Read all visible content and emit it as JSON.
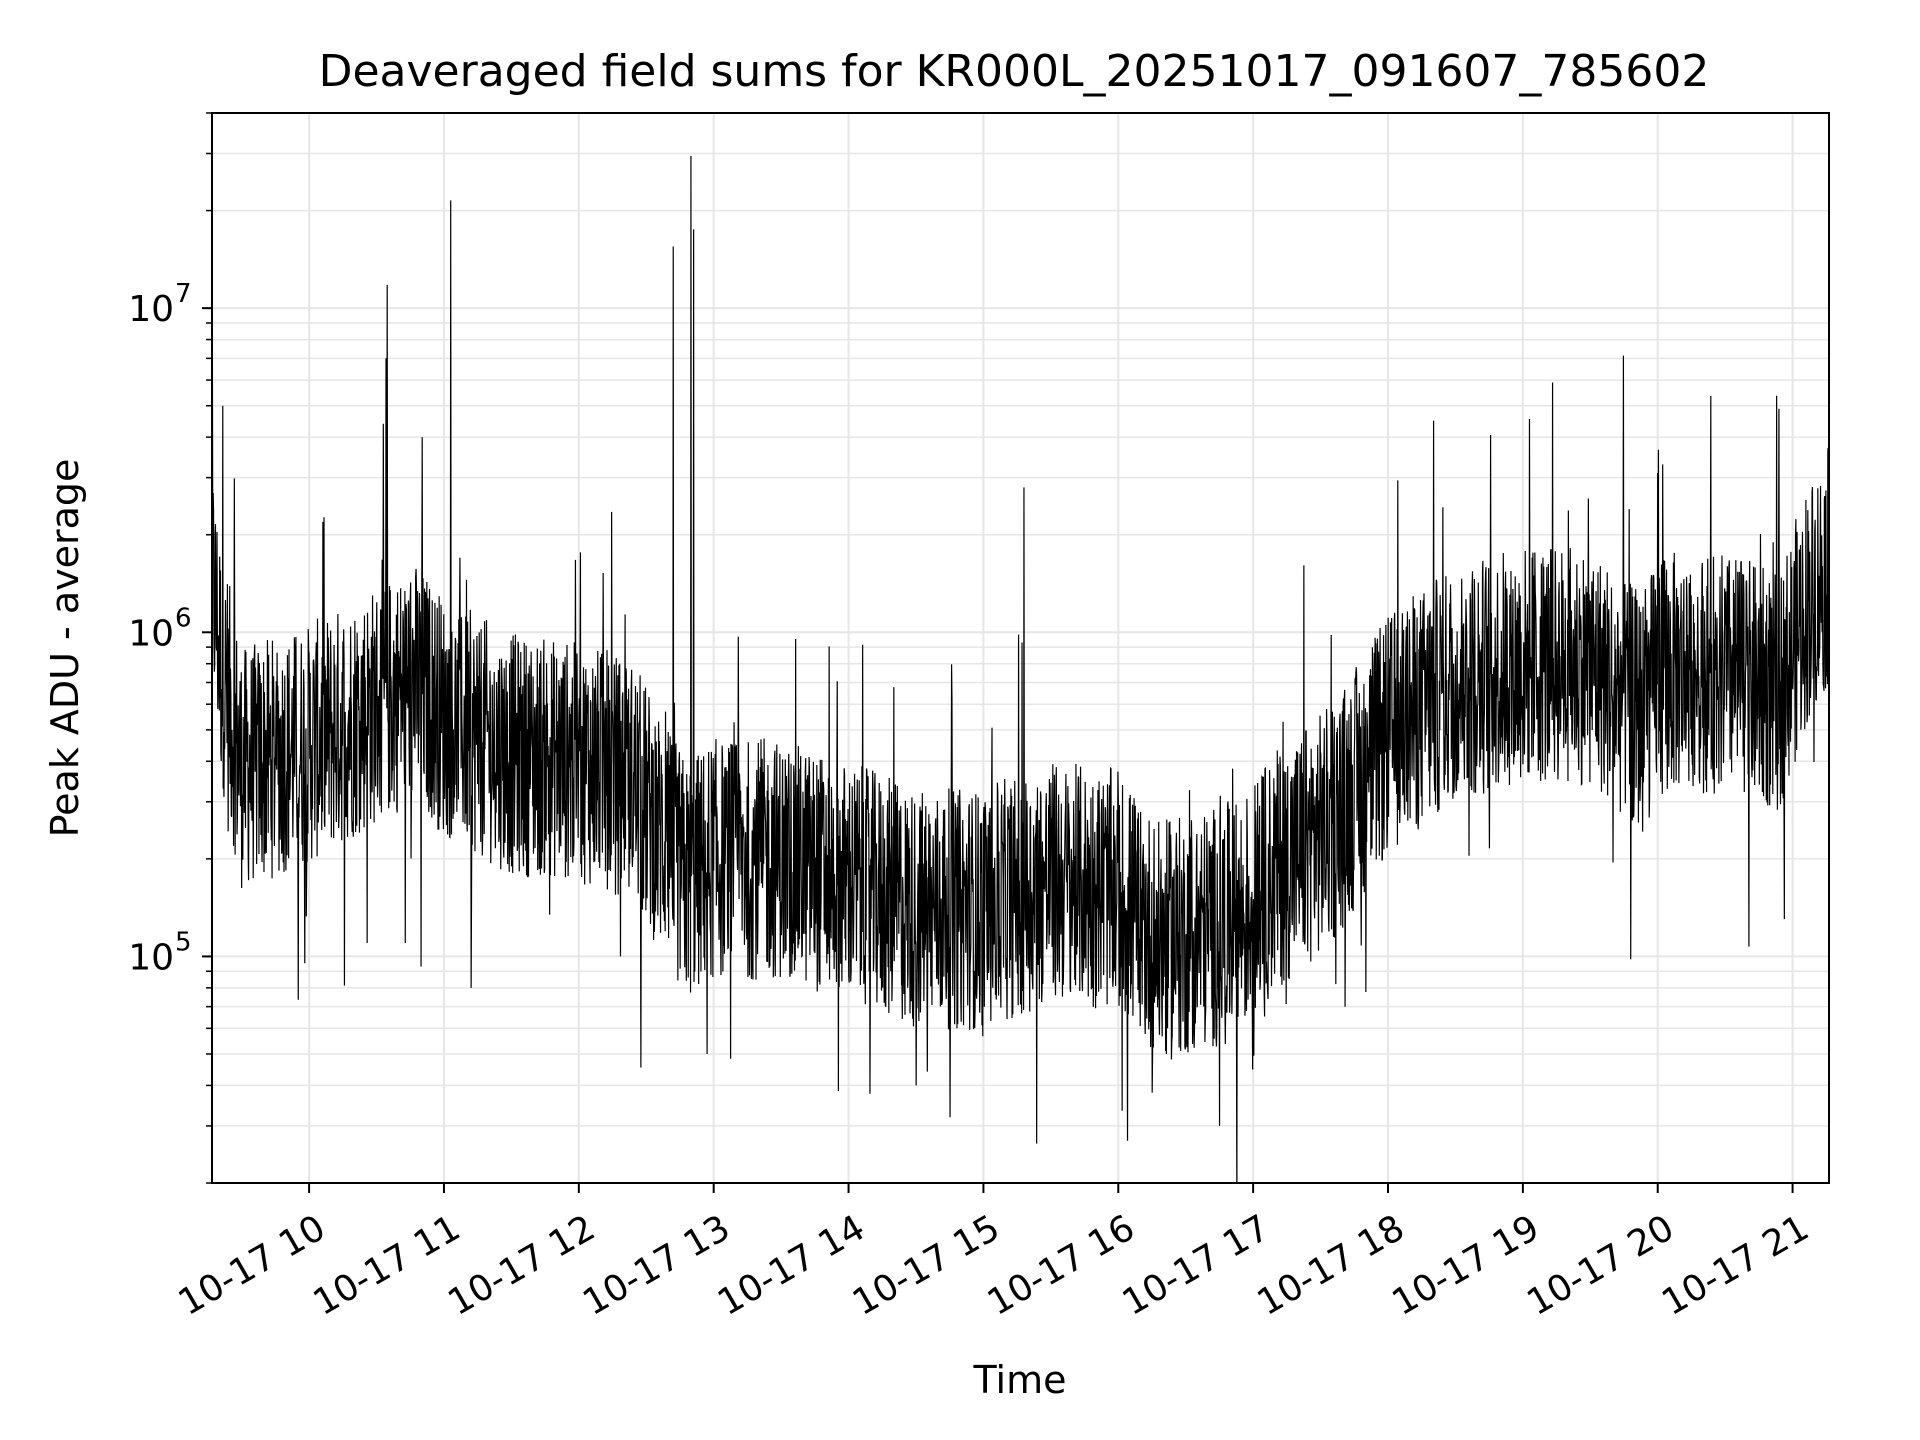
{
  "chart_data": {
    "type": "line",
    "title": "Deaveraged field sums for KR000L_20251017_091607_785602",
    "xlabel": "Time",
    "ylabel": "Peak ADU - average",
    "yscale": "log",
    "ylim": [
      20000,
      40000000
    ],
    "xlim_hours": [
      9.28,
      21.27
    ],
    "grid": true,
    "line_color": "#000000",
    "grid_color": "#e6e6e6",
    "x_ticks": [
      {
        "hour": 10,
        "label": "10-17 10"
      },
      {
        "hour": 11,
        "label": "10-17 11"
      },
      {
        "hour": 12,
        "label": "10-17 12"
      },
      {
        "hour": 13,
        "label": "10-17 13"
      },
      {
        "hour": 14,
        "label": "10-17 14"
      },
      {
        "hour": 15,
        "label": "10-17 15"
      },
      {
        "hour": 16,
        "label": "10-17 16"
      },
      {
        "hour": 17,
        "label": "10-17 17"
      },
      {
        "hour": 18,
        "label": "10-17 18"
      },
      {
        "hour": 19,
        "label": "10-17 19"
      },
      {
        "hour": 20,
        "label": "10-17 20"
      },
      {
        "hour": 21,
        "label": "10-17 21"
      }
    ],
    "y_ticks": [
      {
        "value": 100000,
        "base": "10",
        "exp": "5"
      },
      {
        "value": 1000000,
        "base": "10",
        "exp": "6"
      },
      {
        "value": 10000000,
        "base": "10",
        "exp": "7"
      }
    ],
    "series": [
      {
        "name": "Peak ADU - average",
        "baseline": {
          "hours": [
            9.28,
            9.35,
            9.5,
            10.0,
            10.5,
            10.8,
            11.0,
            11.5,
            12.0,
            12.4,
            12.8,
            13.0,
            13.5,
            14.0,
            14.5,
            15.0,
            15.5,
            16.0,
            16.3,
            16.6,
            16.9,
            17.2,
            17.6,
            18.0,
            18.5,
            19.0,
            19.5,
            19.9,
            20.0,
            20.5,
            20.9,
            21.1,
            21.27
          ],
          "values": [
            1500000,
            800000,
            380000,
            450000,
            600000,
            700000,
            550000,
            420000,
            400000,
            350000,
            170000,
            200000,
            200000,
            170000,
            140000,
            140000,
            170000,
            160000,
            110000,
            120000,
            130000,
            190000,
            260000,
            480000,
            700000,
            800000,
            800000,
            550000,
            750000,
            750000,
            650000,
            1200000,
            1600000
          ]
        },
        "spikes": [
          {
            "hour": 9.36,
            "value": 5000000
          },
          {
            "hour": 10.55,
            "value": 4400000
          },
          {
            "hour": 10.57,
            "value": 7000000
          },
          {
            "hour": 10.58,
            "value": 11800000
          },
          {
            "hour": 10.84,
            "value": 4000000
          },
          {
            "hour": 11.05,
            "value": 21500000
          },
          {
            "hour": 12.7,
            "value": 15500000
          },
          {
            "hour": 12.83,
            "value": 29500000
          },
          {
            "hour": 12.85,
            "value": 17500000
          },
          {
            "hour": 15.3,
            "value": 2800000
          },
          {
            "hour": 20.0,
            "value": 3100000
          }
        ],
        "dips": [
          {
            "hour": 10.43,
            "value": 110000
          },
          {
            "hour": 10.83,
            "value": 93000
          },
          {
            "hour": 11.2,
            "value": 80000
          },
          {
            "hour": 12.95,
            "value": 50000
          },
          {
            "hour": 14.5,
            "value": 40000
          },
          {
            "hour": 16.07,
            "value": 27000
          },
          {
            "hour": 16.25,
            "value": 38000
          },
          {
            "hour": 16.75,
            "value": 30000
          },
          {
            "hour": 19.8,
            "value": 98000
          }
        ]
      }
    ]
  }
}
